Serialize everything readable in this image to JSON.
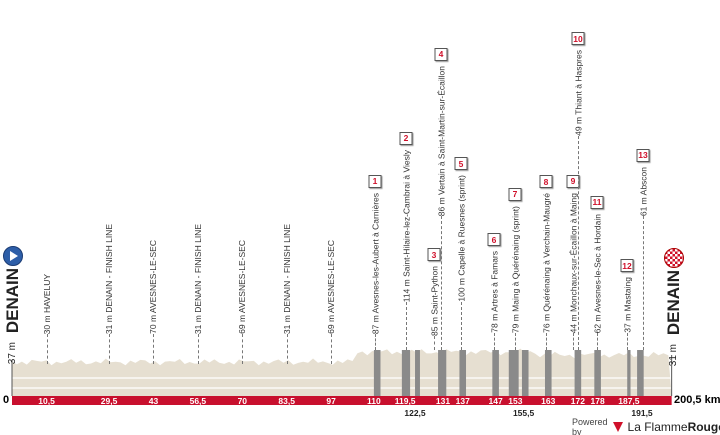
{
  "start": {
    "city": "DENAIN",
    "altitude": "37 m",
    "icon": "play-icon",
    "color": "#2d5ea8"
  },
  "finish": {
    "city": "DENAIN",
    "altitude": "31 m",
    "icon": "checkered-flag-icon",
    "color": "#d0102a"
  },
  "axis": {
    "zero": "0",
    "total": "200,5 km"
  },
  "accent": "#c8102e",
  "points": [
    {
      "km": 10.5,
      "label": "30 m HAVELUY"
    },
    {
      "km": 29.5,
      "label": "31 m DENAIN - FINISH LINE"
    },
    {
      "km": 43,
      "label": "70 m AVESNES-LE-SEC"
    },
    {
      "km": 56.5,
      "label": "31 m DENAIN - FINISH LINE"
    },
    {
      "km": 70,
      "label": "69 m AVESNES-LE-SEC"
    },
    {
      "km": 83.5,
      "label": "31 m DENAIN - FINISH LINE"
    },
    {
      "km": 97,
      "label": "69 m AVESNES-LE-SEC"
    }
  ],
  "sectors": [
    {
      "num": "1",
      "label": "87 m Avesnes-les-Aubert à Carnières"
    },
    {
      "num": "2",
      "label": "114 m Saint-Hilaire-lez-Cambrai à Viesly"
    },
    {
      "num": "3",
      "label": "85 m Saint-Python"
    },
    {
      "num": "4",
      "label": "86 m Vertain à Saint-Martin-sur-Écaillon"
    },
    {
      "num": "5",
      "label": "100 m Capelle à Ruesnes (sprint)"
    },
    {
      "num": "6",
      "label": "78 m Artres à Famars"
    },
    {
      "num": "7",
      "label": "79 m Maing à Quérénaing (sprint)"
    },
    {
      "num": "8",
      "label": "76 m Quérénaing à Verchain-Maugré"
    },
    {
      "num": "9",
      "label": "44 m Monchaux-sur-Écaillon à Maing"
    },
    {
      "num": "10",
      "label": "49 m Thiant à Haspres"
    },
    {
      "num": "11",
      "label": "62 m Avesnes-le-Sec à Hordain"
    },
    {
      "num": "12",
      "label": "37 m Mastaing"
    },
    {
      "num": "13",
      "label": "61 m Abscon"
    }
  ],
  "bar_km": [
    "10,5",
    "29,5",
    "43",
    "56,5",
    "70",
    "83,5",
    "97",
    "110",
    "119,5",
    "131",
    "137",
    "147",
    "153",
    "163",
    "172",
    "178",
    "187,5"
  ],
  "below_km": [
    "122,5",
    "155,5",
    "191,5"
  ],
  "footer": {
    "powered": "Powered by",
    "brand_a": "La Flamme",
    "brand_b": "Rouge"
  }
}
